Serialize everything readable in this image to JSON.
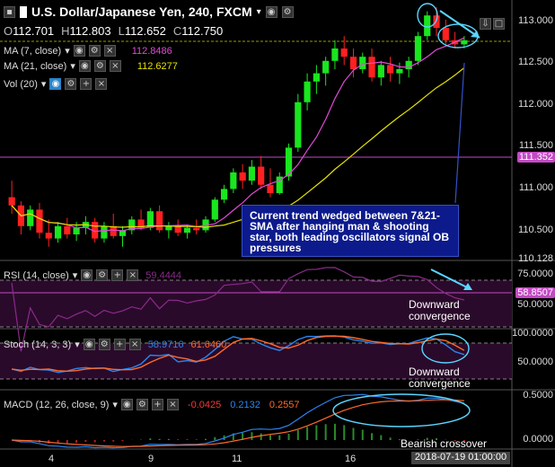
{
  "header": {
    "title": "U.S. Dollar/Japanese Yen, 240, FXCM",
    "ohlc": {
      "o_label": "O",
      "o": "112.701",
      "h_label": "H",
      "h": "112.803",
      "l_label": "L",
      "l": "112.652",
      "c_label": "C",
      "c": "112.750"
    }
  },
  "indicators": {
    "ma7": {
      "label": "MA (7, close)",
      "value": "112.8486",
      "color": "#e14ad6"
    },
    "ma21": {
      "label": "MA (21, close)",
      "value": "112.6277",
      "color": "#e6e200"
    },
    "vol": {
      "label": "Vol (20)"
    },
    "rsi": {
      "label": "RSI (14, close)",
      "value": "59.4444",
      "tag": "58.8507",
      "color": "#8b2a8b"
    },
    "stoch": {
      "label": "Stoch (14, 3, 3)",
      "k": "58.9716",
      "d": "61.6460",
      "k_color": "#2b84f0",
      "d_color": "#ff6a2a"
    },
    "macd": {
      "label": "MACD (12, 26, close, 9)",
      "v1": "-0.0425",
      "v2": "0.2132",
      "v3": "0.2557",
      "v1_color": "#ff3333",
      "v2_color": "#2b84f0",
      "v3_color": "#ff6a2a"
    }
  },
  "price_axis": [
    "113.000",
    "112.500",
    "112.000",
    "111.500",
    "111.000",
    "110.500",
    "110.128"
  ],
  "price_tags": {
    "ma_level": "111.352",
    "last": "113.000"
  },
  "rsi_axis": [
    "75.0000",
    "50.0000"
  ],
  "stoch_axis": [
    "100.0000",
    "50.0000"
  ],
  "macd_axis": [
    "0.5000",
    "0.0000"
  ],
  "annotation": "Current trend wedged between 7&21-SMA after hanging man & shooting star, both leading oscillators signal OB pressures",
  "labels": {
    "rsi_note_1": "Downward",
    "rsi_note_2": "convergence",
    "stoch_note_1": "Downward",
    "stoch_note_2": "convergence",
    "macd_note": "Bearish crossover"
  },
  "x_axis": [
    "4",
    "9",
    "11",
    "16"
  ],
  "crosshair_date": "2018-07-19 01:00:00",
  "colors": {
    "bull": "#19e61e",
    "bear": "#ff2020",
    "bg": "#000000"
  },
  "chart_data": {
    "type": "candlestick",
    "ohlc": [
      [
        110.85,
        111.05,
        110.65,
        110.75
      ],
      [
        110.75,
        110.8,
        110.4,
        110.5
      ],
      [
        110.5,
        110.75,
        110.45,
        110.7
      ],
      [
        110.7,
        110.78,
        110.35,
        110.42
      ],
      [
        110.42,
        110.58,
        110.25,
        110.35
      ],
      [
        110.35,
        110.55,
        110.3,
        110.5
      ],
      [
        110.5,
        110.6,
        110.35,
        110.4
      ],
      [
        110.4,
        110.55,
        110.32,
        110.48
      ],
      [
        110.48,
        110.62,
        110.4,
        110.55
      ],
      [
        110.55,
        110.6,
        110.3,
        110.35
      ],
      [
        110.35,
        110.55,
        110.3,
        110.5
      ],
      [
        110.5,
        110.65,
        110.35,
        110.38
      ],
      [
        110.38,
        110.5,
        110.25,
        110.45
      ],
      [
        110.45,
        110.62,
        110.4,
        110.58
      ],
      [
        110.58,
        110.7,
        110.45,
        110.48
      ],
      [
        110.48,
        110.72,
        110.45,
        110.68
      ],
      [
        110.68,
        110.75,
        110.42,
        110.45
      ],
      [
        110.45,
        110.55,
        110.35,
        110.5
      ],
      [
        110.5,
        110.58,
        110.38,
        110.42
      ],
      [
        110.42,
        110.52,
        110.35,
        110.48
      ],
      [
        110.48,
        110.58,
        110.4,
        110.45
      ],
      [
        110.45,
        110.62,
        110.42,
        110.58
      ],
      [
        110.58,
        110.85,
        110.55,
        110.82
      ],
      [
        110.82,
        111.0,
        110.78,
        110.95
      ],
      [
        110.95,
        111.2,
        110.9,
        111.15
      ],
      [
        111.15,
        111.25,
        110.95,
        111.05
      ],
      [
        111.05,
        111.3,
        111.0,
        111.22
      ],
      [
        111.22,
        111.35,
        110.95,
        111.0
      ],
      [
        111.0,
        111.2,
        110.85,
        110.9
      ],
      [
        110.9,
        111.15,
        110.88,
        111.1
      ],
      [
        111.1,
        111.5,
        111.05,
        111.45
      ],
      [
        111.45,
        112.1,
        111.4,
        112.0
      ],
      [
        112.0,
        112.35,
        111.9,
        112.25
      ],
      [
        112.25,
        112.45,
        112.1,
        112.35
      ],
      [
        112.35,
        112.55,
        112.2,
        112.5
      ],
      [
        112.5,
        112.75,
        112.4,
        112.65
      ],
      [
        112.65,
        112.8,
        112.45,
        112.55
      ],
      [
        112.55,
        112.65,
        112.3,
        112.4
      ],
      [
        112.4,
        112.6,
        112.35,
        112.55
      ],
      [
        112.55,
        112.65,
        112.25,
        112.3
      ],
      [
        112.3,
        112.5,
        112.2,
        112.45
      ],
      [
        112.45,
        112.55,
        112.25,
        112.35
      ],
      [
        112.35,
        112.48,
        112.22,
        112.4
      ],
      [
        112.4,
        112.55,
        112.3,
        112.5
      ],
      [
        112.5,
        112.85,
        112.45,
        112.8
      ],
      [
        112.8,
        113.1,
        112.75,
        113.05
      ],
      [
        113.05,
        113.15,
        112.8,
        112.9
      ],
      [
        112.9,
        113.0,
        112.7,
        112.75
      ],
      [
        112.75,
        112.85,
        112.65,
        112.7
      ],
      [
        112.7,
        112.8,
        112.65,
        112.75
      ]
    ],
    "ma7_last": 112.8486,
    "ma21_last": 112.6277,
    "ylim": [
      110.128,
      113.15
    ],
    "rsi_last": 58.8507,
    "stoch_k_last": 58.9716,
    "stoch_d_last": 61.646,
    "macd_last": [
      -0.0425,
      0.2132,
      0.2557
    ]
  }
}
